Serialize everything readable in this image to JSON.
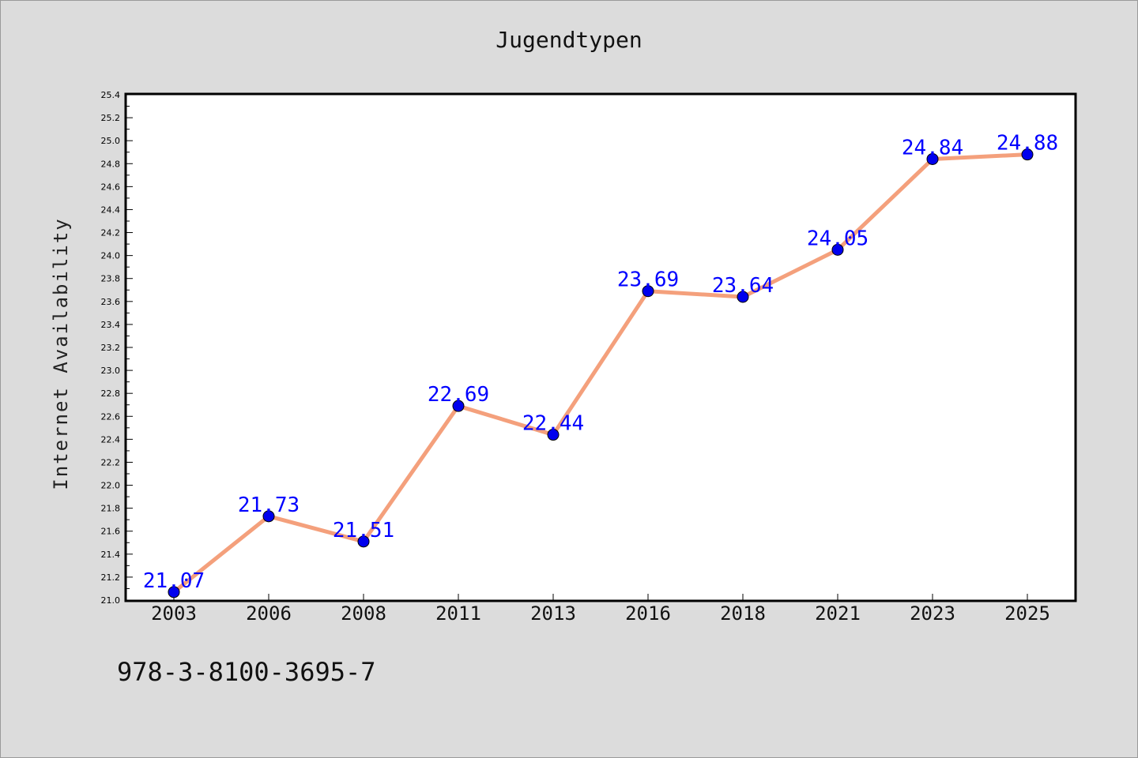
{
  "chart_data": {
    "type": "line",
    "title": "Jugendtypen",
    "xlabel": "",
    "ylabel": "Internet Availability",
    "categories": [
      "2003",
      "2006",
      "2008",
      "2011",
      "2013",
      "2016",
      "2018",
      "2021",
      "2023",
      "2025"
    ],
    "series": [
      {
        "values": [
          21.07,
          21.73,
          21.51,
          22.69,
          22.44,
          23.69,
          23.64,
          24.05,
          24.84,
          24.88
        ],
        "line_color": "#f4a07c",
        "marker_color": "#0000ee"
      }
    ],
    "data_labels": [
      "21.07",
      "21.73",
      "21.51",
      "22.69",
      "22.44",
      "23.69",
      "23.64",
      "24.05",
      "24.84",
      "24.88"
    ],
    "ylim": [
      21.0,
      25.4
    ],
    "yticks": [
      "21.0",
      "21.2",
      "21.4",
      "21.6",
      "21.8",
      "22.0",
      "22.2",
      "22.4",
      "22.6",
      "22.8",
      "23.0",
      "23.2",
      "23.4",
      "23.6",
      "23.8",
      "24.0",
      "24.2",
      "24.4",
      "24.6",
      "24.8",
      "25.0",
      "25.2",
      "25.4"
    ],
    "grid": false,
    "label_color": "#0000ff"
  },
  "footer_text": "978-3-8100-3695-7"
}
